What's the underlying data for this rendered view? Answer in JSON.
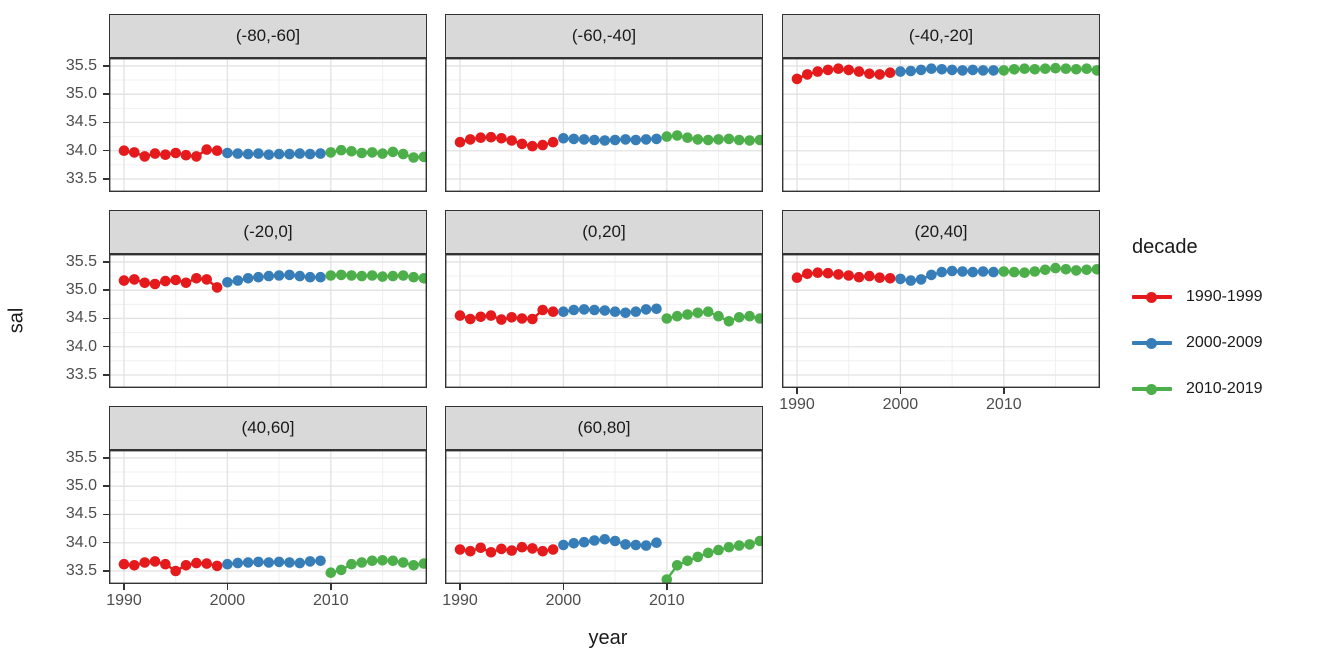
{
  "figure": {
    "y_axis_title": "sal",
    "x_axis_title": "year",
    "y_tick_labels": [
      "33.5",
      "34.0",
      "34.5",
      "35.0",
      "35.5"
    ],
    "x_tick_labels": [
      "1990",
      "2000",
      "2010"
    ]
  },
  "legend": {
    "title": "decade",
    "entries": [
      {
        "label": "1990-1999",
        "color": "#E41A1C"
      },
      {
        "label": "2000-2009",
        "color": "#377EB8"
      },
      {
        "label": "2010-2019",
        "color": "#4DAF4A"
      }
    ]
  },
  "chart_data": {
    "type": "line",
    "title": "",
    "xlabel": "year",
    "ylabel": "sal",
    "facet_variable": "latitude band",
    "legend_title": "decade",
    "legend_position": "right",
    "grid": "on",
    "x_ticks": [
      1990,
      2000,
      2010
    ],
    "x_minor_ticks": [
      1995,
      2005,
      2015
    ],
    "y_ticks": [
      33.5,
      34.0,
      34.5,
      35.0,
      35.5
    ],
    "y_minor_ticks": [
      33.75,
      34.25,
      34.75,
      35.25
    ],
    "x_range": [
      1988.55,
      2019.3
    ],
    "y_range": [
      33.27,
      35.64
    ],
    "series_names": [
      "1990-1999",
      "2000-2009",
      "2010-2019"
    ],
    "colors": [
      "#E41A1C",
      "#377EB8",
      "#4DAF4A"
    ],
    "facets": [
      {
        "label": "(-80,-60]",
        "series": [
          {
            "name": "1990-1999",
            "start_year": 1990,
            "values": [
              34.0,
              33.97,
              33.9,
              33.95,
              33.93,
              33.96,
              33.92,
              33.9,
              34.02,
              34.0
            ]
          },
          {
            "name": "2000-2009",
            "start_year": 2000,
            "values": [
              33.96,
              33.95,
              33.94,
              33.95,
              33.93,
              33.94,
              33.94,
              33.95,
              33.94,
              33.95
            ]
          },
          {
            "name": "2010-2019",
            "start_year": 2010,
            "values": [
              33.97,
              34.01,
              33.99,
              33.96,
              33.97,
              33.95,
              33.98,
              33.94,
              33.88,
              33.89
            ]
          }
        ]
      },
      {
        "label": "(-60,-40]",
        "series": [
          {
            "name": "1990-1999",
            "start_year": 1990,
            "values": [
              34.15,
              34.2,
              34.23,
              34.24,
              34.22,
              34.18,
              34.12,
              34.08,
              34.1,
              34.15
            ]
          },
          {
            "name": "2000-2009",
            "start_year": 2000,
            "values": [
              34.22,
              34.21,
              34.2,
              34.19,
              34.18,
              34.19,
              34.2,
              34.19,
              34.2,
              34.21
            ]
          },
          {
            "name": "2010-2019",
            "start_year": 2010,
            "values": [
              34.25,
              34.27,
              34.23,
              34.2,
              34.19,
              34.2,
              34.21,
              34.19,
              34.18,
              34.19
            ]
          }
        ]
      },
      {
        "label": "(-40,-20]",
        "series": [
          {
            "name": "1990-1999",
            "start_year": 1990,
            "values": [
              35.27,
              35.35,
              35.4,
              35.43,
              35.45,
              35.43,
              35.4,
              35.36,
              35.35,
              35.38
            ]
          },
          {
            "name": "2000-2009",
            "start_year": 2000,
            "values": [
              35.4,
              35.41,
              35.43,
              35.45,
              35.44,
              35.43,
              35.42,
              35.43,
              35.42,
              35.42
            ]
          },
          {
            "name": "2010-2019",
            "start_year": 2010,
            "values": [
              35.42,
              35.44,
              35.45,
              35.44,
              35.45,
              35.46,
              35.45,
              35.44,
              35.45,
              35.42
            ]
          }
        ]
      },
      {
        "label": "(-20,0]",
        "series": [
          {
            "name": "1990-1999",
            "start_year": 1990,
            "values": [
              35.17,
              35.19,
              35.13,
              35.11,
              35.16,
              35.18,
              35.13,
              35.21,
              35.19,
              35.05
            ]
          },
          {
            "name": "2000-2009",
            "start_year": 2000,
            "values": [
              35.14,
              35.17,
              35.21,
              35.23,
              35.25,
              35.26,
              35.27,
              35.25,
              35.23,
              35.23
            ]
          },
          {
            "name": "2010-2019",
            "start_year": 2010,
            "values": [
              35.26,
              35.27,
              35.26,
              35.25,
              35.26,
              35.24,
              35.25,
              35.26,
              35.23,
              35.21
            ]
          }
        ]
      },
      {
        "label": "(0,20]",
        "series": [
          {
            "name": "1990-1999",
            "start_year": 1990,
            "values": [
              34.55,
              34.49,
              34.53,
              34.55,
              34.48,
              34.52,
              34.5,
              34.49,
              34.65,
              34.62
            ]
          },
          {
            "name": "2000-2009",
            "start_year": 2000,
            "values": [
              34.62,
              34.65,
              34.66,
              34.65,
              34.64,
              34.62,
              34.6,
              34.62,
              34.66,
              34.67
            ]
          },
          {
            "name": "2010-2019",
            "start_year": 2010,
            "values": [
              34.5,
              34.54,
              34.57,
              34.6,
              34.62,
              34.54,
              34.45,
              34.52,
              34.54,
              34.5
            ]
          }
        ]
      },
      {
        "label": "(20,40]",
        "series": [
          {
            "name": "1990-1999",
            "start_year": 1990,
            "values": [
              35.22,
              35.29,
              35.31,
              35.3,
              35.28,
              35.26,
              35.23,
              35.25,
              35.22,
              35.21
            ]
          },
          {
            "name": "2000-2009",
            "start_year": 2000,
            "values": [
              35.2,
              35.17,
              35.19,
              35.27,
              35.32,
              35.34,
              35.33,
              35.32,
              35.33,
              35.32
            ]
          },
          {
            "name": "2010-2019",
            "start_year": 2010,
            "values": [
              35.33,
              35.32,
              35.31,
              35.33,
              35.36,
              35.39,
              35.37,
              35.35,
              35.36,
              35.37
            ]
          }
        ]
      },
      {
        "label": "(40,60]",
        "series": [
          {
            "name": "1990-1999",
            "start_year": 1990,
            "values": [
              33.62,
              33.6,
              33.65,
              33.67,
              33.62,
              33.5,
              33.6,
              33.64,
              33.63,
              33.59
            ]
          },
          {
            "name": "2000-2009",
            "start_year": 2000,
            "values": [
              33.62,
              33.64,
              33.65,
              33.66,
              33.65,
              33.66,
              33.65,
              33.64,
              33.67,
              33.68
            ]
          },
          {
            "name": "2010-2019",
            "start_year": 2010,
            "values": [
              33.47,
              33.52,
              33.62,
              33.65,
              33.68,
              33.69,
              33.68,
              33.65,
              33.6,
              33.63
            ]
          }
        ]
      },
      {
        "label": "(60,80]",
        "series": [
          {
            "name": "1990-1999",
            "start_year": 1990,
            "values": [
              33.88,
              33.85,
              33.91,
              33.83,
              33.89,
              33.86,
              33.92,
              33.9,
              33.85,
              33.88
            ]
          },
          {
            "name": "2000-2009",
            "start_year": 2000,
            "values": [
              33.96,
              33.99,
              34.01,
              34.04,
              34.06,
              34.03,
              33.97,
              33.96,
              33.95,
              34.0
            ]
          },
          {
            "name": "2010-2019",
            "start_year": 2010,
            "values": [
              33.35,
              33.6,
              33.68,
              33.75,
              33.82,
              33.87,
              33.92,
              33.95,
              33.97,
              34.03
            ]
          }
        ]
      }
    ]
  }
}
